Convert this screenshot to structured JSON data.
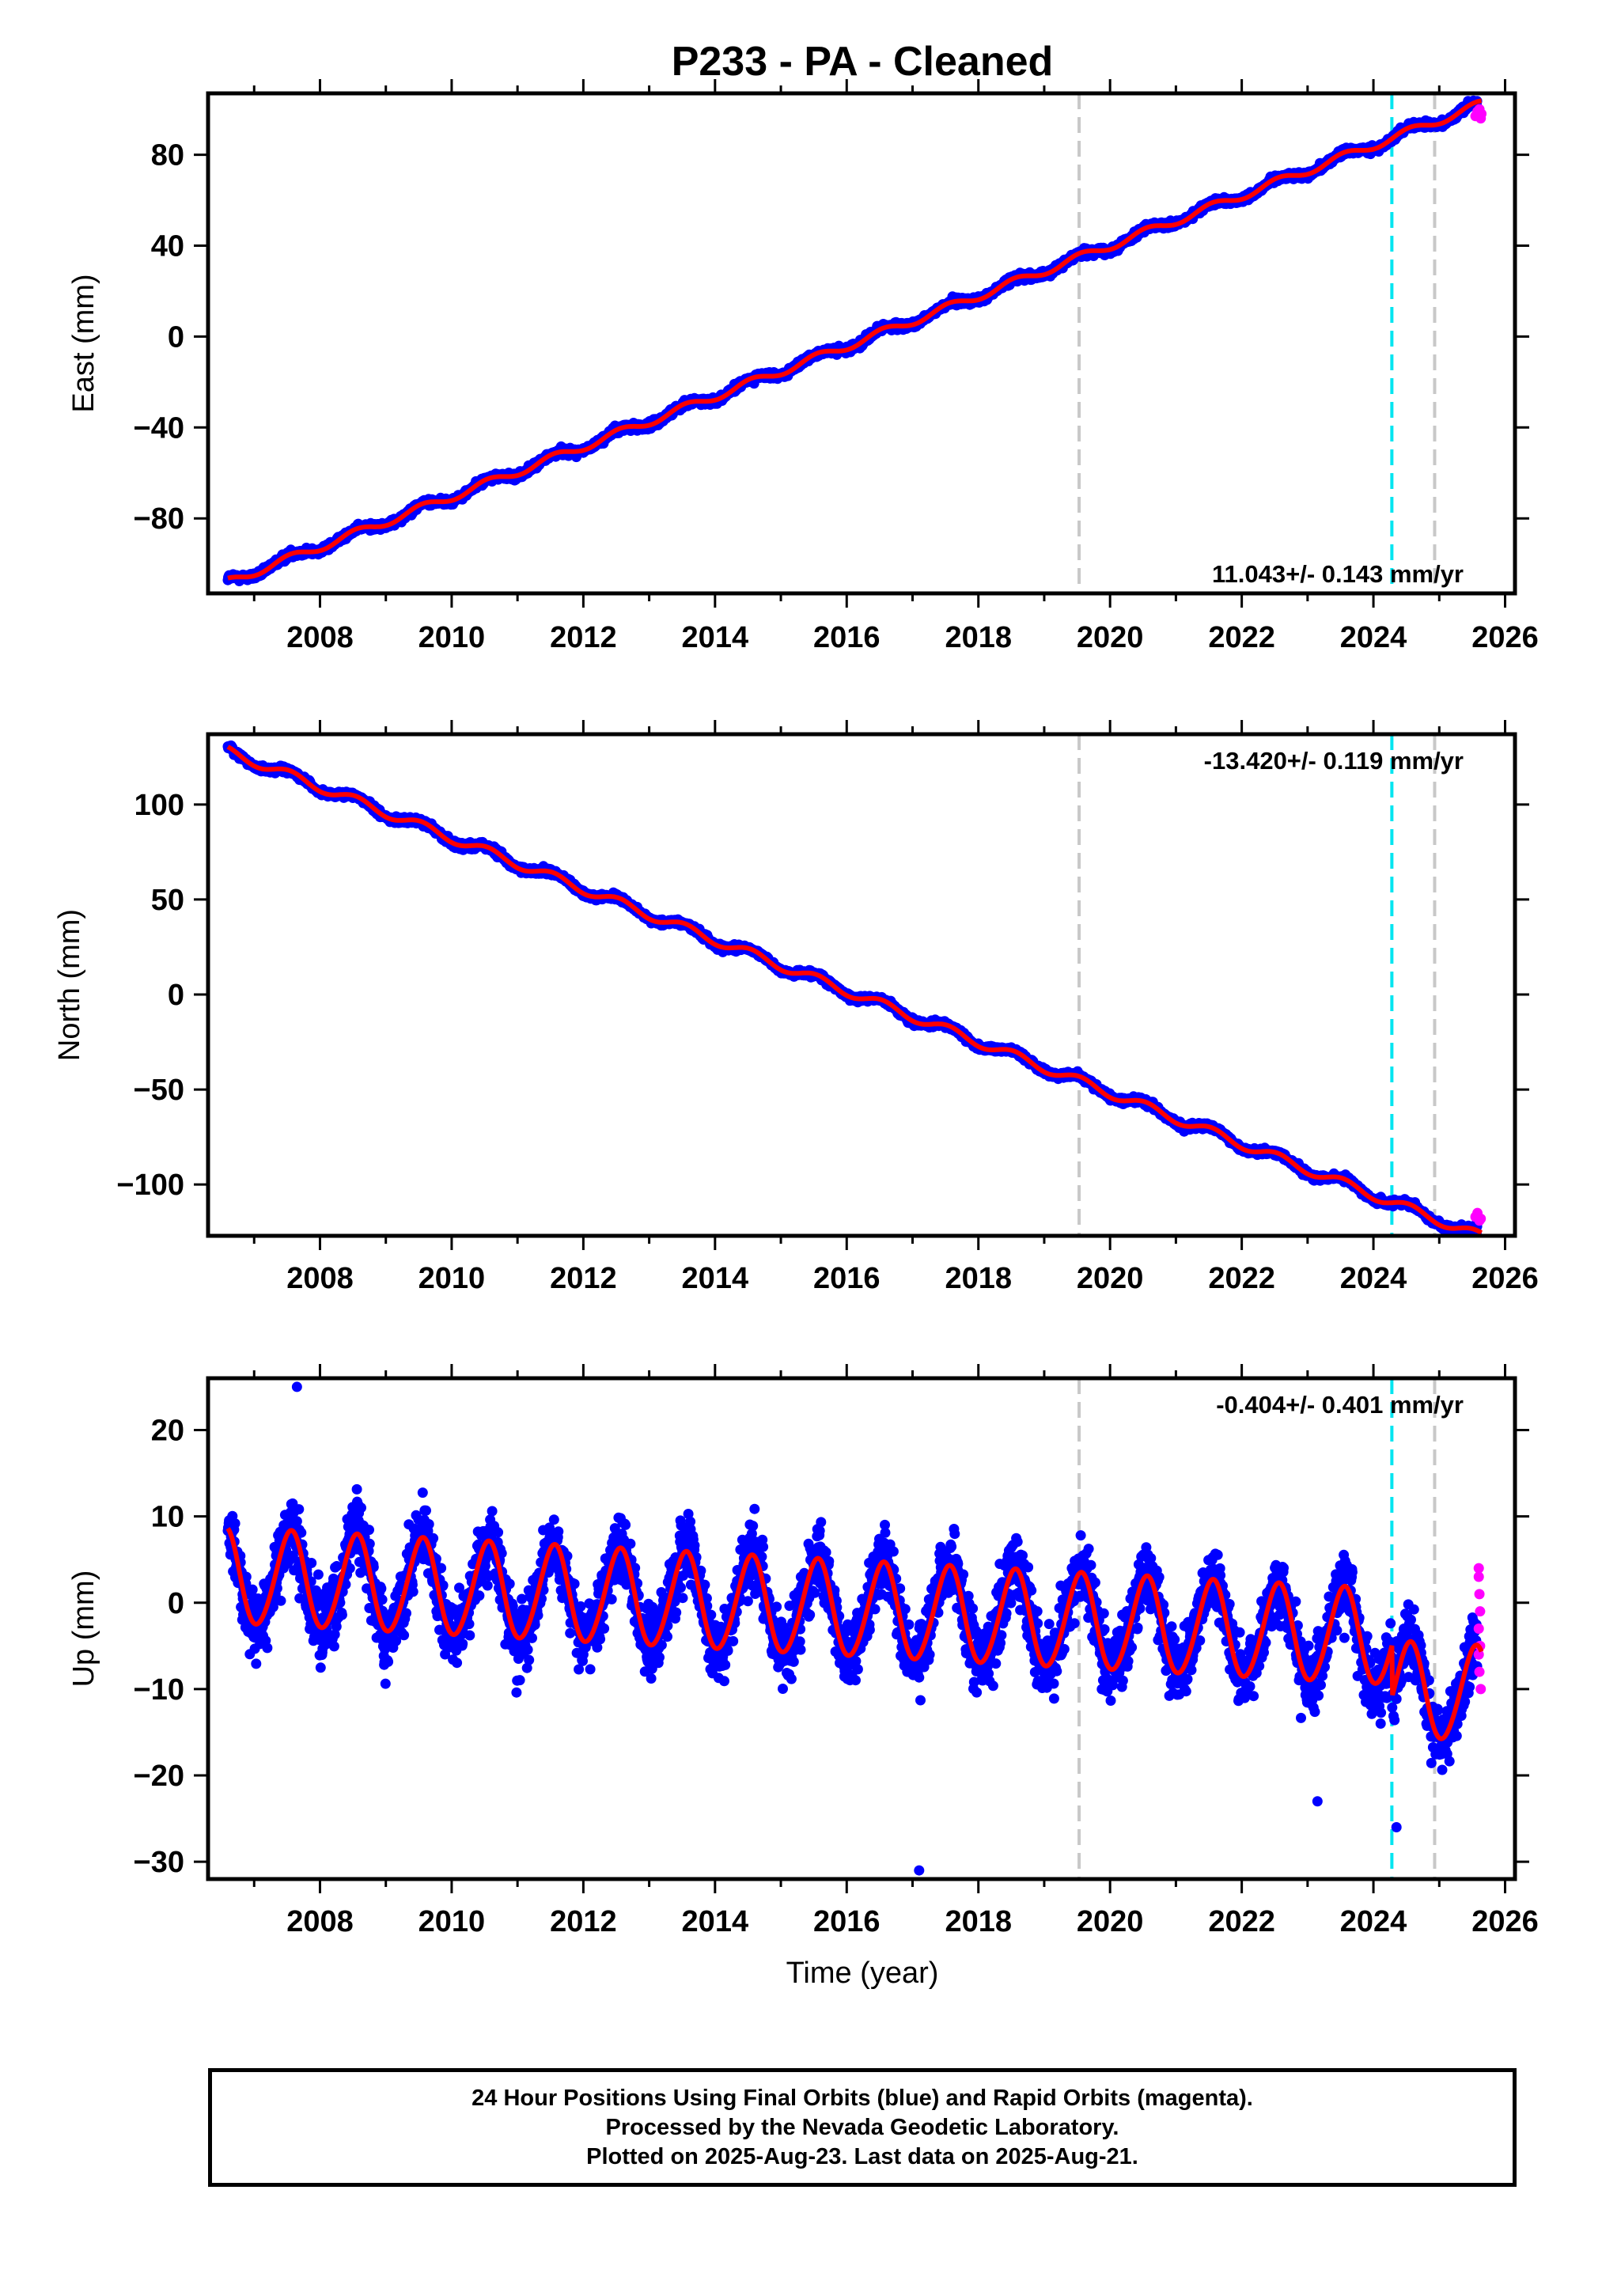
{
  "title": "P233  - PA - Cleaned",
  "x_tick_labels": [
    "2008",
    "2010",
    "2012",
    "2014",
    "2016",
    "2018",
    "2020",
    "2022",
    "2024",
    "2026"
  ],
  "x_axis_label": "Time (year)",
  "colors": {
    "final_orbits": "#0000ff",
    "rapid_orbits": "#ff00ff",
    "model_fit": "#ff0000",
    "equipment_change_line": "#c8c8c8",
    "event_line": "#00e5f0"
  },
  "footer": {
    "line1": "24 Hour Positions Using Final Orbits (blue) and Rapid Orbits (magenta).",
    "line2": "Processed by the Nevada Geodetic Laboratory.",
    "line3": "Plotted on 2025-Aug-23. Last data on 2025-Aug-21."
  },
  "chart_data": [
    {
      "type": "scatter",
      "panel": "east",
      "ylabel": "East (mm)",
      "y_tick_labels": [
        "80",
        "40",
        "0",
        "−40",
        "−80"
      ],
      "y_ticks": [
        80,
        40,
        0,
        -40,
        -80
      ],
      "xlim": [
        2006.3,
        2026.15
      ],
      "ylim": [
        -113,
        107
      ],
      "rate_label": "11.043+/- 0.143 mm/yr",
      "rate_label_position": "bottom-right",
      "velocity_mm_per_yr": 11.043,
      "start_x": 2006.6,
      "end_x": 2025.64,
      "start_value": -108,
      "annual_amplitude_mm": 1.8,
      "rapid_orbit_points": [
        [
          2025.55,
          97
        ],
        [
          2025.58,
          99
        ],
        [
          2025.61,
          100
        ],
        [
          2025.63,
          96
        ],
        [
          2025.64,
          98
        ]
      ],
      "vertical_lines": [
        {
          "x": 2019.53,
          "kind": "equipment_change"
        },
        {
          "x": 2024.28,
          "kind": "event"
        },
        {
          "x": 2024.93,
          "kind": "equipment_change"
        }
      ],
      "grid": false
    },
    {
      "type": "scatter",
      "panel": "north",
      "ylabel": "North (mm)",
      "y_tick_labels": [
        "100",
        "50",
        "0",
        "−50",
        "−100"
      ],
      "y_ticks": [
        100,
        50,
        0,
        -50,
        -100
      ],
      "xlim": [
        2006.3,
        2026.15
      ],
      "ylim": [
        -127,
        137
      ],
      "rate_label": "-13.420+/- 0.119 mm/yr",
      "rate_label_position": "top-right",
      "velocity_mm_per_yr": -13.42,
      "start_x": 2006.6,
      "end_x": 2025.64,
      "start_value": 128,
      "annual_amplitude_mm": 2.5,
      "rapid_orbit_points": [
        [
          2025.55,
          -117
        ],
        [
          2025.58,
          -115
        ],
        [
          2025.61,
          -119
        ],
        [
          2025.63,
          -118
        ]
      ],
      "vertical_lines": [
        {
          "x": 2019.53,
          "kind": "equipment_change"
        },
        {
          "x": 2024.28,
          "kind": "event"
        },
        {
          "x": 2024.93,
          "kind": "equipment_change"
        }
      ],
      "grid": false
    },
    {
      "type": "scatter",
      "panel": "up",
      "ylabel": "Up (mm)",
      "y_tick_labels": [
        "20",
        "10",
        "0",
        "−10",
        "−20",
        "−30"
      ],
      "y_ticks": [
        20,
        10,
        0,
        -10,
        -20,
        -30
      ],
      "xlim": [
        2006.3,
        2026.15
      ],
      "ylim": [
        -32,
        26
      ],
      "rate_label": "-0.404+/- 0.401 mm/yr",
      "rate_label_position": "top-right",
      "velocity_mm_per_yr": -0.404,
      "start_x": 2006.6,
      "end_x": 2025.64,
      "start_value": 3,
      "annual_amplitude_mm": 5.5,
      "offset_after_event_mm": -6,
      "rapid_orbit_points": [
        [
          2025.6,
          4
        ],
        [
          2025.6,
          3
        ],
        [
          2025.61,
          1
        ],
        [
          2025.62,
          -1
        ],
        [
          2025.6,
          -3
        ],
        [
          2025.62,
          -5
        ],
        [
          2025.6,
          -6
        ],
        [
          2025.61,
          -8
        ],
        [
          2025.63,
          -10
        ]
      ],
      "outlier_points": [
        [
          2007.65,
          25
        ],
        [
          2017.1,
          -31
        ],
        [
          2023.15,
          -23
        ],
        [
          2024.35,
          -26
        ]
      ],
      "vertical_lines": [
        {
          "x": 2019.53,
          "kind": "equipment_change"
        },
        {
          "x": 2024.28,
          "kind": "event"
        },
        {
          "x": 2024.93,
          "kind": "equipment_change"
        }
      ],
      "grid": false
    }
  ]
}
